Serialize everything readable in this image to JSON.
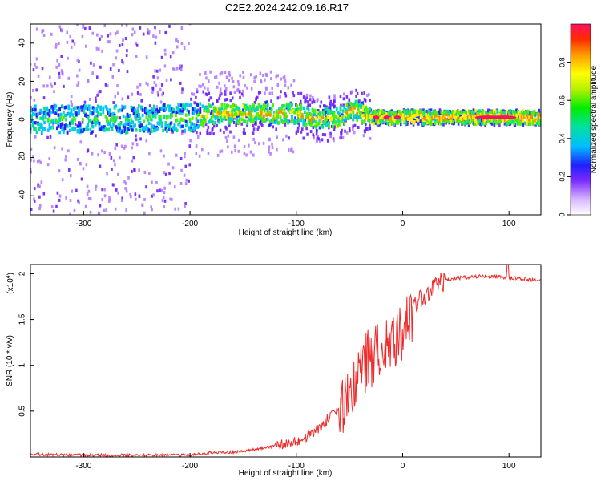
{
  "figure": {
    "title": "C2E2.2024.242.09.16.R17"
  },
  "chart_data": [
    {
      "type": "heatmap",
      "xlabel": "Height of straight line (km)",
      "ylabel": "Frequency (Hz)",
      "xlim": [
        -350,
        130
      ],
      "ylim": [
        -50,
        50
      ],
      "xticks": [
        -300,
        -200,
        -100,
        0,
        100
      ],
      "yticks": [
        -40,
        -20,
        0,
        20,
        40
      ],
      "colorbar": {
        "label": "Normalized spectral amplitude",
        "range": [
          0,
          1
        ],
        "ticks": [
          0.0,
          0.2,
          0.4,
          0.6,
          0.8
        ],
        "colormap": "rainbow",
        "low_color": "#ffffff",
        "high_color": "#ff1060"
      },
      "ridge": {
        "x": [
          -350,
          -300,
          -250,
          -200,
          -180,
          -150,
          -120,
          -100,
          -80,
          -60,
          -45,
          -30,
          -20,
          0,
          20,
          50,
          80,
          100,
          130
        ],
        "y": [
          0,
          0,
          0,
          1,
          3,
          3,
          3,
          3,
          0,
          1,
          5,
          1,
          1,
          1,
          1,
          1,
          1,
          1,
          1
        ]
      },
      "grid": false
    },
    {
      "type": "line",
      "xlabel": "Height of straight line (km)",
      "ylabel": "SNR (10 * v/v)",
      "scale_note": "(x10",
      "scale_exp": "4",
      "xlim": [
        -350,
        130
      ],
      "ylim": [
        0,
        2.1
      ],
      "xticks": [
        -300,
        -200,
        -100,
        0,
        100
      ],
      "yticks": [
        0.5,
        1.0,
        1.5,
        2.0
      ],
      "series": [
        {
          "color": "#ee2a2a",
          "x": [
            -350,
            -300,
            -250,
            -200,
            -180,
            -160,
            -140,
            -120,
            -100,
            -90,
            -80,
            -70,
            -60,
            -50,
            -45,
            -40,
            -35,
            -30,
            -25,
            -20,
            -15,
            -10,
            -5,
            0,
            5,
            10,
            20,
            30,
            40,
            50,
            70,
            90,
            100,
            110,
            130
          ],
          "y": [
            0.03,
            0.02,
            0.02,
            0.02,
            0.05,
            0.05,
            0.08,
            0.12,
            0.16,
            0.22,
            0.3,
            0.42,
            0.52,
            0.6,
            0.8,
            0.95,
            1.05,
            1.1,
            1.15,
            1.2,
            1.3,
            1.35,
            1.3,
            1.3,
            1.45,
            1.6,
            1.75,
            1.85,
            1.92,
            1.95,
            1.97,
            1.97,
            1.95,
            1.95,
            1.92
          ]
        }
      ],
      "grid": false
    }
  ]
}
